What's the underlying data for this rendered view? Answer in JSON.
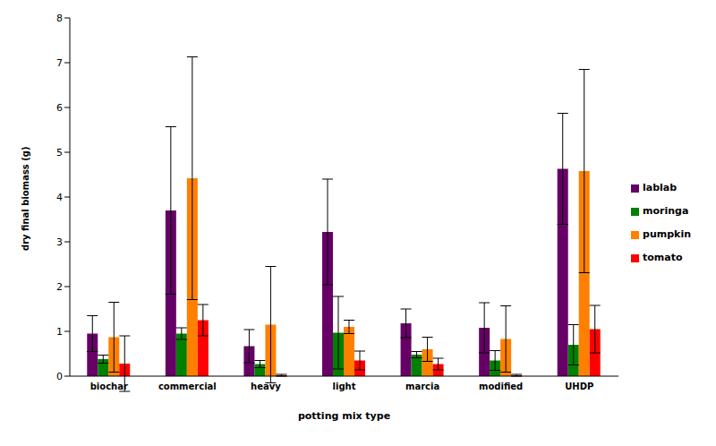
{
  "chart_data": {
    "type": "bar",
    "x_label": "potting mix type",
    "y_label": "dry final biomass (g)",
    "categories": [
      "biochar",
      "commercial",
      "heavy",
      "light",
      "marcia",
      "modified",
      "UHDP"
    ],
    "series": [
      {
        "name": "lablab",
        "color": "#660066",
        "values": [
          0.95,
          3.7,
          0.67,
          3.22,
          1.18,
          1.08,
          4.63
        ],
        "errors": [
          0.4,
          1.87,
          0.37,
          1.18,
          0.32,
          0.56,
          1.24
        ]
      },
      {
        "name": "moringa",
        "color": "#008000",
        "values": [
          0.38,
          0.95,
          0.27,
          0.97,
          0.48,
          0.35,
          0.7
        ],
        "errors": [
          0.09,
          0.13,
          0.08,
          0.81,
          0.07,
          0.22,
          0.45
        ]
      },
      {
        "name": "pumpkin",
        "color": "#ff8000",
        "values": [
          0.87,
          4.42,
          1.15,
          1.1,
          0.6,
          0.83,
          4.58
        ],
        "errors": [
          0.78,
          2.71,
          1.3,
          0.15,
          0.27,
          0.74,
          2.27
        ]
      },
      {
        "name": "tomato",
        "color": "#ff0000",
        "values": [
          0.28,
          1.25,
          0.02,
          0.35,
          0.27,
          0.02,
          1.05
        ],
        "errors": [
          0.62,
          0.35,
          0.02,
          0.21,
          0.13,
          0.02,
          0.53
        ]
      }
    ],
    "ylim": [
      0,
      8
    ],
    "yticks": [
      0,
      1,
      2,
      3,
      4,
      5,
      6,
      7,
      8
    ],
    "grid": false,
    "legend": "right"
  }
}
